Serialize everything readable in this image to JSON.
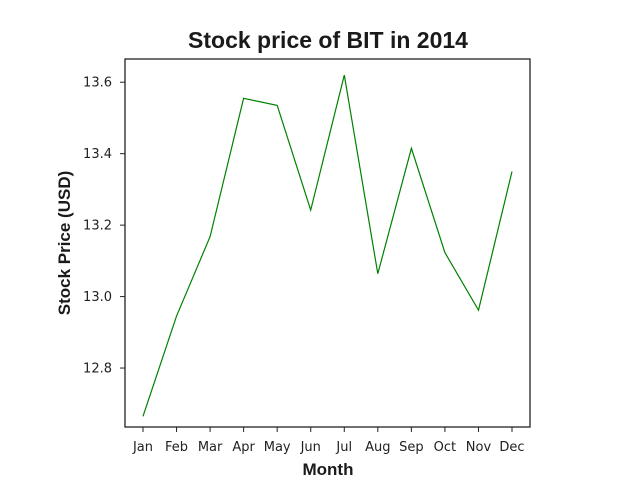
{
  "chart_data": {
    "type": "line",
    "title": "Stock price of BIT in 2014",
    "xlabel": "Month",
    "ylabel": "Stock Price (USD)",
    "categories": [
      "Jan",
      "Feb",
      "Mar",
      "Apr",
      "May",
      "Jun",
      "Jul",
      "Aug",
      "Sep",
      "Oct",
      "Nov",
      "Dec"
    ],
    "series": [
      {
        "values": [
          12.665,
          12.945,
          13.168,
          13.555,
          13.535,
          13.242,
          13.62,
          13.064,
          13.415,
          13.123,
          12.962,
          13.35
        ],
        "color": "#008000"
      }
    ],
    "yticks": [
      "12.8",
      "13.0",
      "13.2",
      "13.4",
      "13.6"
    ],
    "ylim": [
      12.635,
      13.665
    ],
    "grid": false,
    "legend": false
  }
}
